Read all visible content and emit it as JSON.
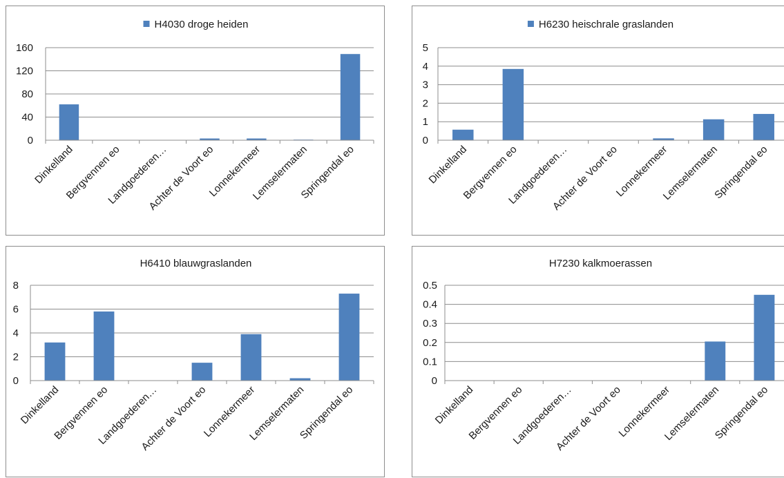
{
  "chart_data": [
    {
      "type": "bar",
      "title": "",
      "legend": "H4030 droge heiden",
      "legend_position": "top",
      "categories": [
        "Dinkelland",
        "Bergvennen eo",
        "Landgoederen…",
        "Achter de Voort eo",
        "Lonnekermeer",
        "Lemselermaten",
        "Springendal eo"
      ],
      "series": [
        {
          "name": "H4030 droge heiden",
          "values": [
            62,
            0,
            0,
            3,
            3,
            1,
            149
          ]
        }
      ],
      "ylim": [
        0,
        160
      ],
      "yticks": [
        "0",
        "40",
        "80",
        "120",
        "160"
      ],
      "grid": true
    },
    {
      "type": "bar",
      "title": "",
      "legend": "H6230 heischrale graslanden",
      "legend_position": "top",
      "categories": [
        "Dinkelland",
        "Bergvennen eo",
        "Landgoederen…",
        "Achter de Voort eo",
        "Lonnekermeer",
        "Lemselermaten",
        "Springendal eo"
      ],
      "series": [
        {
          "name": "H6230 heischrale graslanden",
          "values": [
            0.57,
            3.85,
            0,
            0,
            0.1,
            1.13,
            1.42
          ]
        }
      ],
      "ylim": [
        0,
        5
      ],
      "yticks": [
        "0",
        "1",
        "2",
        "3",
        "4",
        "5"
      ],
      "grid": true
    },
    {
      "type": "bar",
      "title": "H6410 blauwgraslanden",
      "legend": "",
      "categories": [
        "Dinkelland",
        "Bergvennen eo",
        "Landgoederen…",
        "Achter de Voort eo",
        "Lonnekermeer",
        "Lemselermaten",
        "Springendal eo"
      ],
      "series": [
        {
          "values": [
            3.2,
            5.8,
            0,
            1.5,
            3.9,
            0.2,
            7.3
          ]
        }
      ],
      "ylim": [
        0,
        8
      ],
      "yticks": [
        "0",
        "2",
        "4",
        "6",
        "8"
      ],
      "grid": true
    },
    {
      "type": "bar",
      "title": "H7230 kalkmoerassen",
      "legend": "",
      "categories": [
        "Dinkelland",
        "Bergvennen eo",
        "Landgoederen…",
        "Achter de Voort eo",
        "Lonnekermeer",
        "Lemselermaten",
        "Springendal eo"
      ],
      "series": [
        {
          "values": [
            0,
            0,
            0,
            0,
            0,
            0.205,
            0.45
          ]
        }
      ],
      "ylim": [
        0,
        0.5
      ],
      "yticks": [
        "0",
        "0.1",
        "0.2",
        "0.3",
        "0.4",
        "0.5"
      ],
      "grid": true
    }
  ],
  "colors": {
    "bar": "#4f81bd",
    "grid": "#8c8c8c",
    "axis": "#8c8c8c"
  }
}
